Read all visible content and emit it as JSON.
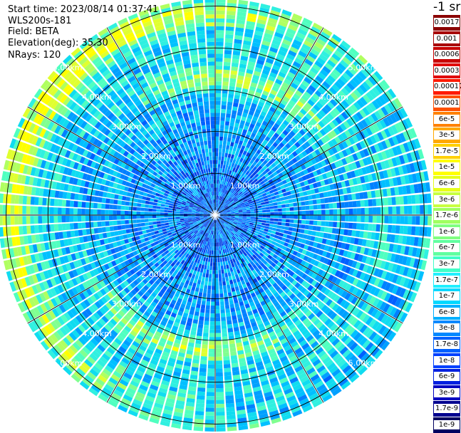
{
  "info": {
    "start_time": "Start time: 2023/08/14 01:37:41",
    "instrument": "WLS200s-181",
    "field": "Field: BETA",
    "elevation": "Elevation(deg): 35.30",
    "nrays": "NRays: 120"
  },
  "chart_data": {
    "type": "heatmap",
    "projection": "polar",
    "field": "BETA",
    "elevation_deg": 35.3,
    "n_rays": 120,
    "range_rings_km": [
      "1.00km",
      "2.00km",
      "3.00km",
      "4.00km",
      "5.00km"
    ],
    "max_range_km": 5.18,
    "azimuth_lines_deg": [
      0,
      30,
      60,
      90,
      120,
      150,
      180,
      210,
      240,
      270,
      300,
      330
    ],
    "colorbar": {
      "unit_label": "-1 sr",
      "labels": [
        "0.0017",
        "0.001",
        "0.0006",
        "0.0003",
        "0.00017",
        "0.0001",
        "6e-5",
        "3e-5",
        "1.7e-5",
        "1e-5",
        "6e-6",
        "3e-6",
        "1.7e-6",
        "1e-6",
        "6e-7",
        "3e-7",
        "1.7e-7",
        "1e-7",
        "6e-8",
        "3e-8",
        "1.7e-8",
        "1e-8",
        "6e-9",
        "3e-9",
        "1.7e-9",
        "1e-9"
      ],
      "colors": [
        "#8b0000",
        "#a80000",
        "#c80000",
        "#e00000",
        "#ff1a00",
        "#ff5000",
        "#ff8000",
        "#ffa800",
        "#ffd000",
        "#ffff00",
        "#e6ff1a",
        "#c8ff40",
        "#a0ff60",
        "#80ff80",
        "#60ffa0",
        "#40ffc8",
        "#20f0ff",
        "#00d8ff",
        "#00b0ff",
        "#0088ff",
        "#0060ff",
        "#0040ff",
        "#0020e0",
        "#0000c0",
        "#000090",
        "#000060"
      ]
    }
  }
}
